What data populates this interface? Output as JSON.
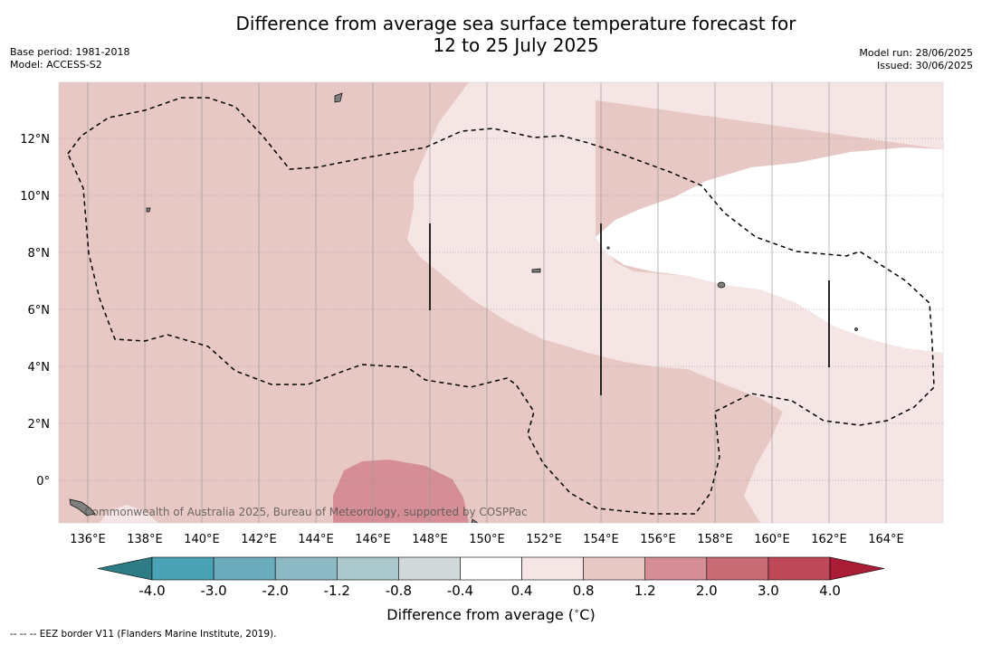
{
  "title_line1": "Difference from average sea surface temperature forecast for",
  "title_line2": "12 to 25 July 2025",
  "meta_left": {
    "base_period": "Base period: 1981-2018",
    "model": "Model: ACCESS-S2"
  },
  "meta_right": {
    "model_run": "Model run: 28/06/2025",
    "issued": "Issued: 30/06/2025"
  },
  "lat_labels": [
    "12°N",
    "10°N",
    "8°N",
    "6°N",
    "4°N",
    "2°N",
    "0°"
  ],
  "lon_labels": [
    "136°E",
    "138°E",
    "140°E",
    "142°E",
    "144°E",
    "146°E",
    "148°E",
    "150°E",
    "152°E",
    "154°E",
    "156°E",
    "158°E",
    "160°E",
    "162°E",
    "164°E"
  ],
  "credit": "Commonwealth of Australia 2025, Bureau of Meteorology, supported by COSPPac",
  "colorbar": {
    "tick_labels": [
      "-4.0",
      "-3.0",
      "-2.0",
      "-1.2",
      "-0.8",
      "-0.4",
      "0.4",
      "0.8",
      "1.2",
      "2.0",
      "3.0",
      "4.0"
    ],
    "colors": [
      "#2e7d86",
      "#4aa3b4",
      "#6aacbc",
      "#8cb9c3",
      "#aac8cc",
      "#d1d8da",
      "#ffffff",
      "#f5e6e5",
      "#e8c8c4",
      "#d58e95",
      "#c86b75",
      "#bf4959",
      "#a81c35"
    ],
    "title": "Difference from average (°C)"
  },
  "footnote": "--  --  -- EEZ border V11 (Flanders Marine Institute, 2019)."
}
